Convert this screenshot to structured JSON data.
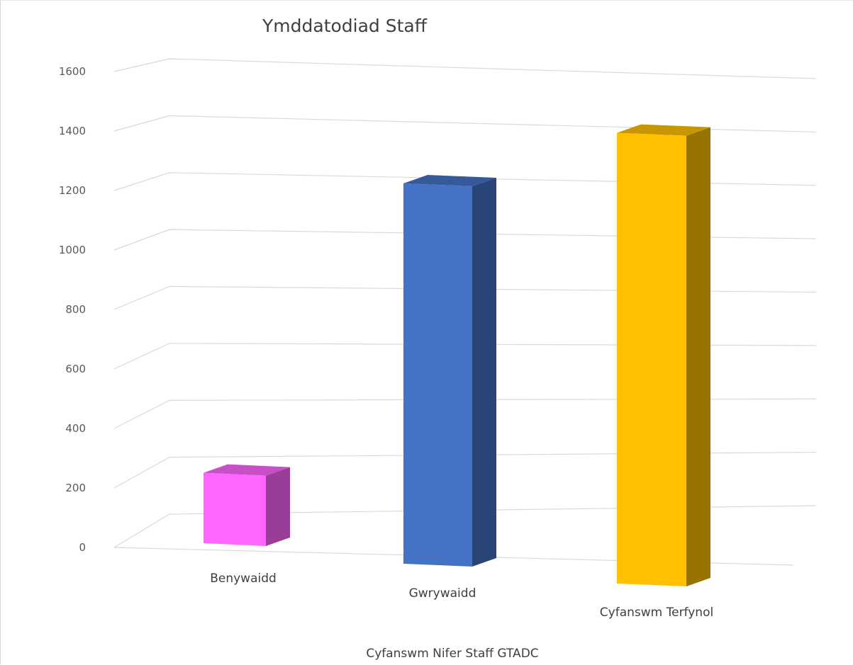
{
  "chart_data": {
    "type": "bar",
    "title": "Ymddatodiad Staff",
    "xlabel": "Cyfanswm Nifer Staff GTADC",
    "ylabel": "",
    "categories": [
      "Benywaidd",
      "Gwrywaidd",
      "Cyfanswm Terfynol"
    ],
    "values": [
      235,
      1270,
      1505
    ],
    "colors": [
      "#ff66ff",
      "#4472c4",
      "#ffc000"
    ],
    "ylim": [
      0,
      1600
    ],
    "yticks": [
      0,
      200,
      400,
      600,
      800,
      1000,
      1200,
      1400,
      1600
    ],
    "grid": true,
    "legend": "none",
    "style": "3d-column"
  }
}
